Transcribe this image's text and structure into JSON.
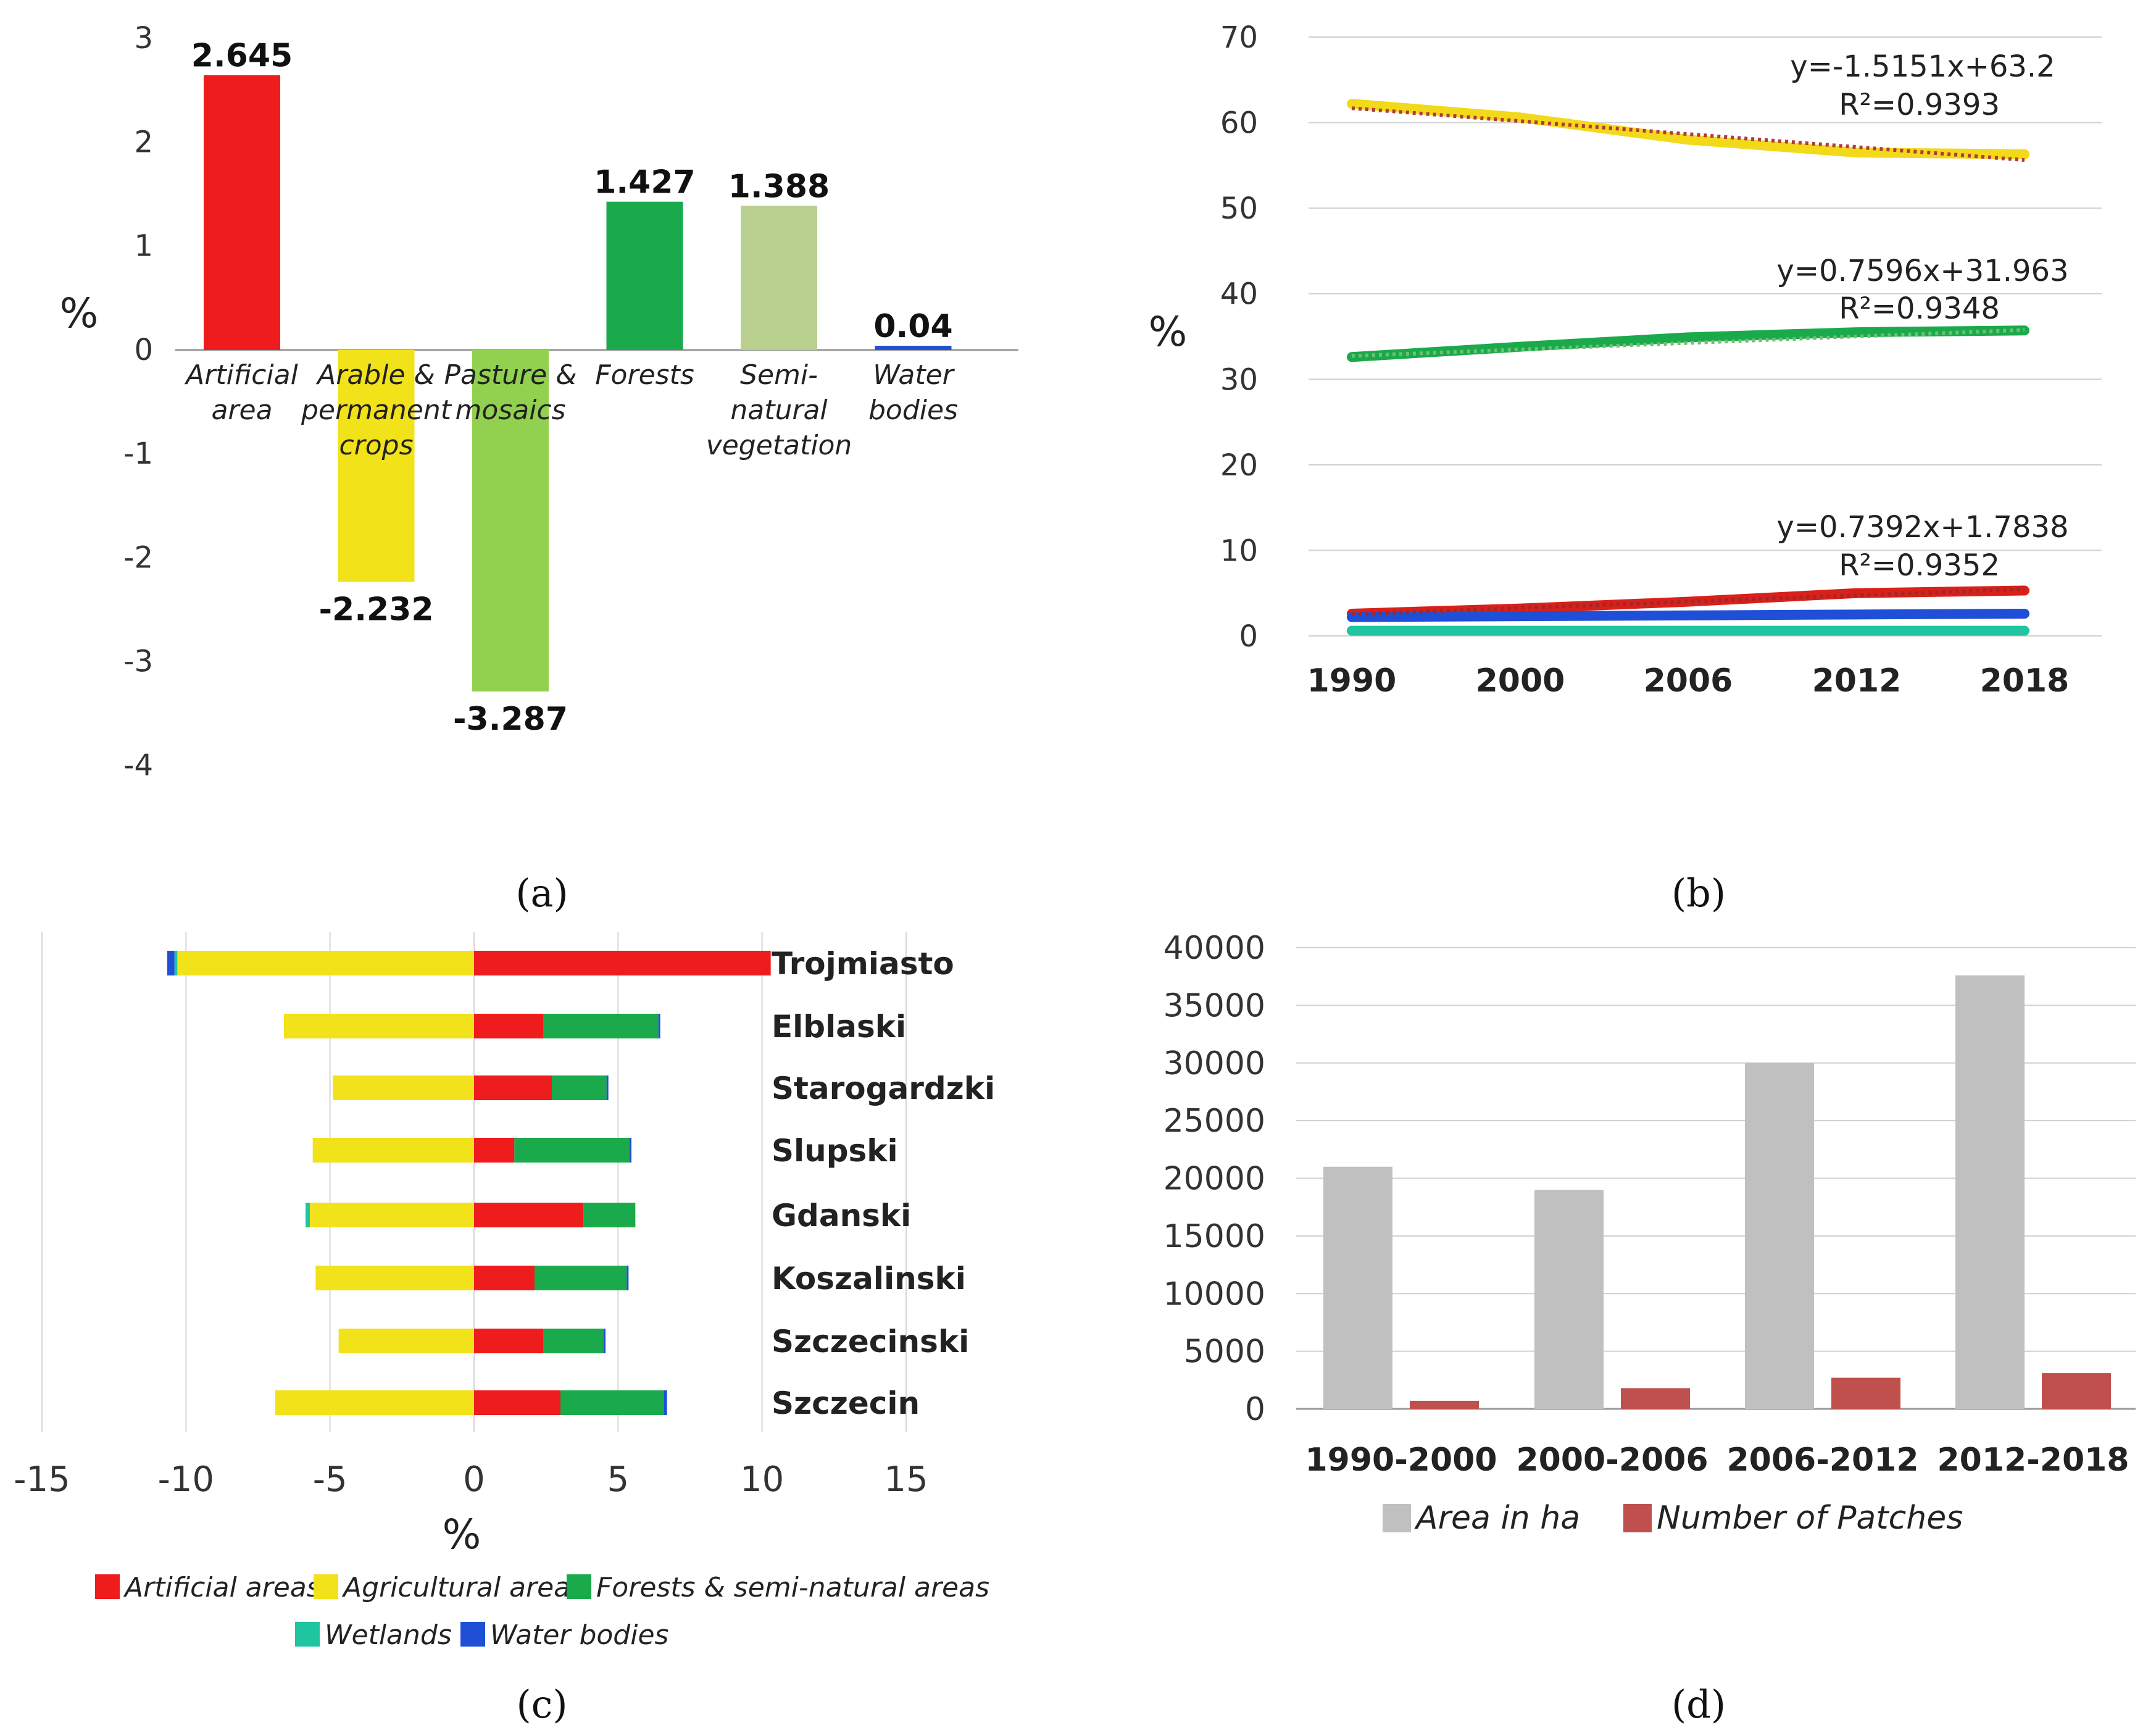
{
  "chart_data": [
    {
      "panel": "(a)",
      "type": "bar",
      "ylabel": "%",
      "ylim": [
        -4,
        3
      ],
      "yticks": [
        "3",
        "2",
        "1",
        "0",
        "-1",
        "-2",
        "-3",
        "-4"
      ],
      "categories": [
        [
          "Artificial",
          "area"
        ],
        [
          "Arable &",
          "permanent",
          "crops"
        ],
        [
          "Pasture &",
          "mosaics"
        ],
        [
          "Forests"
        ],
        [
          "Semi-",
          "natural",
          "vegetation"
        ],
        [
          "Water",
          "bodies"
        ]
      ],
      "values": [
        2.645,
        -2.232,
        -3.287,
        1.427,
        1.388,
        0.04
      ],
      "value_labels": [
        "2.645",
        "-2.232",
        "-3.287",
        "1.427",
        "1.388",
        "0.04"
      ],
      "colors": [
        "#ee1c1c",
        "#f2e21a",
        "#92d050",
        "#1aaa4b",
        "#bad08f",
        "#1f4fd6"
      ]
    },
    {
      "panel": "(b)",
      "type": "line",
      "ylabel": "%",
      "ylim": [
        0,
        70
      ],
      "yticks": [
        "0",
        "10",
        "20",
        "30",
        "40",
        "50",
        "60",
        "70"
      ],
      "x": [
        "1990",
        "2000",
        "2006",
        "2012",
        "2018"
      ],
      "series": [
        {
          "name": "Agricultural areas",
          "color": "#f2d91a",
          "values": [
            62.2,
            60.6,
            58.0,
            56.5,
            56.3
          ]
        },
        {
          "name": "Forests & semi-natural areas",
          "color": "#1aaa4b",
          "values": [
            32.6,
            33.8,
            34.9,
            35.5,
            35.7
          ]
        },
        {
          "name": "Artificial areas",
          "color": "#d9201a",
          "values": [
            2.6,
            3.2,
            4.0,
            5.0,
            5.3
          ]
        },
        {
          "name": "Water bodies",
          "color": "#1f4fd6",
          "values": [
            2.2,
            2.3,
            2.4,
            2.5,
            2.6
          ]
        },
        {
          "name": "Wetlands",
          "color": "#1fc4a0",
          "values": [
            0.6,
            0.6,
            0.6,
            0.6,
            0.6
          ]
        }
      ],
      "trendlines": [
        {
          "slope": -1.5151,
          "intercept": 63.2,
          "eq": "y=-1.5151x+63.2",
          "r2": "R²=0.9393"
        },
        {
          "slope": 0.7596,
          "intercept": 31.963,
          "eq": "y=0.7596x+31.963",
          "r2": "R²=0.9348"
        },
        {
          "slope": 0.7392,
          "intercept": 1.7838,
          "eq": "y=0.7392x+1.7838",
          "r2": "R²=0.9352"
        }
      ]
    },
    {
      "panel": "(c)",
      "type": "bar",
      "orientation": "horizontal-stacked",
      "xlabel": "%",
      "xlim": [
        -15,
        15
      ],
      "xticks": [
        "-15",
        "-10",
        "-5",
        "0",
        "5",
        "10",
        "15"
      ],
      "regions": [
        "Trojmiasto",
        "Elblaski",
        "Starogardzki",
        "Slupski",
        "Gdanski",
        "Koszalinski",
        "Szczecinski",
        "Szczecin"
      ],
      "series": [
        {
          "name": "Artificial areas",
          "color": "#ee1c1c",
          "values": [
            10.3,
            2.4,
            2.7,
            1.4,
            3.8,
            2.1,
            2.4,
            3.0
          ]
        },
        {
          "name": "Agricultural areas",
          "color": "#f2e21a",
          "values": [
            -10.3,
            -6.6,
            -4.9,
            -5.6,
            -5.7,
            -5.5,
            -4.7,
            -6.9
          ]
        },
        {
          "name": "Forests & semi-natural areas",
          "color": "#1aaa4b",
          "values": [
            0.0,
            4.0,
            1.9,
            4.0,
            1.8,
            3.2,
            2.1,
            3.6
          ]
        },
        {
          "name": "Wetlands",
          "color": "#1fc4a0",
          "values": [
            -0.1,
            0.0,
            0.0,
            0.0,
            -0.15,
            0.0,
            0.0,
            0.0
          ]
        },
        {
          "name": "Water bodies",
          "color": "#1f4fd6",
          "values": [
            -0.25,
            0.05,
            0.05,
            0.05,
            0.0,
            0.05,
            0.05,
            0.1
          ]
        }
      ]
    },
    {
      "panel": "(d)",
      "type": "bar",
      "ylim": [
        0,
        40000
      ],
      "yticks": [
        "0",
        "5000",
        "10000",
        "15000",
        "20000",
        "25000",
        "30000",
        "35000",
        "40000"
      ],
      "categories": [
        "1990-2000",
        "2000-2006",
        "2006-2012",
        "2012-2018"
      ],
      "series": [
        {
          "name": "Area in ha",
          "color": "#c0c0c0",
          "values": [
            21000,
            19000,
            30000,
            37600
          ]
        },
        {
          "name": "Number of Patches",
          "color": "#c0504d",
          "values": [
            700,
            1800,
            2700,
            3100
          ]
        }
      ]
    }
  ],
  "panel_labels": [
    "(a)",
    "(b)",
    "(c)",
    "(d)"
  ]
}
